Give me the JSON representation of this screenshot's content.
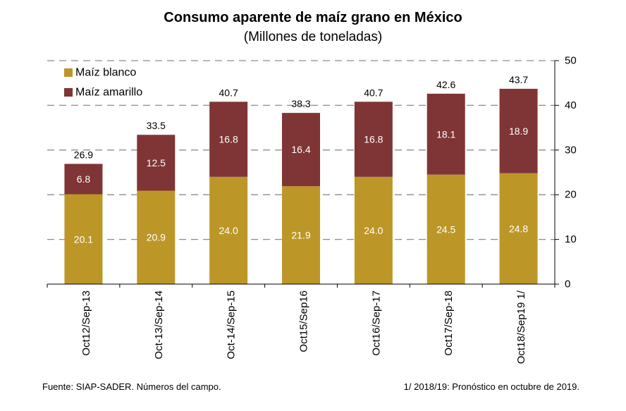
{
  "title": "Consumo aparente de maíz grano en México",
  "subtitle": "(Millones de toneladas)",
  "footnotes": {
    "source": "Fuente: SIAP-SADER. Números del campo.",
    "note": "1/ 2018/19: Pronóstico en octubre de 2019."
  },
  "colors": {
    "blanco": "#BC9728",
    "amarillo": "#7F3535",
    "grid": "#8c8c8c",
    "axis": "#000000"
  },
  "chart_data": {
    "type": "bar",
    "stacked": true,
    "categories": [
      "Oct12/Sep-13",
      "Oct-13/Sep-14",
      "Oct-14/Sep-15",
      "Oct15/Sep16",
      "Oct16/Sep-17",
      "Oct17/Sep-18",
      "Oct18/Sep19 1/"
    ],
    "series": [
      {
        "name": "Maíz blanco",
        "values": [
          20.1,
          20.9,
          24.0,
          21.9,
          24.0,
          24.5,
          24.8
        ],
        "labels": [
          "20.1",
          "20.9",
          "24.0",
          "21.9",
          "24.0",
          "24.5",
          "24.8"
        ]
      },
      {
        "name": "Maíz amarillo",
        "values": [
          6.8,
          12.5,
          16.8,
          16.4,
          16.8,
          18.1,
          18.9
        ],
        "labels": [
          "6.8",
          "12.5",
          "16.8",
          "16.4",
          "16.8",
          "18.1",
          "18.9"
        ]
      }
    ],
    "totals": [
      "26.9",
      "33.5",
      "40.7",
      "38.3",
      "40.7",
      "42.6",
      "43.7"
    ],
    "ylim": [
      0,
      50
    ],
    "yticks": [
      "0",
      "10",
      "20",
      "30",
      "40",
      "50"
    ],
    "y_axis_side": "right",
    "grid": "dashed horizontal",
    "legend_position": "top-left",
    "xlabel": "",
    "ylabel": ""
  }
}
